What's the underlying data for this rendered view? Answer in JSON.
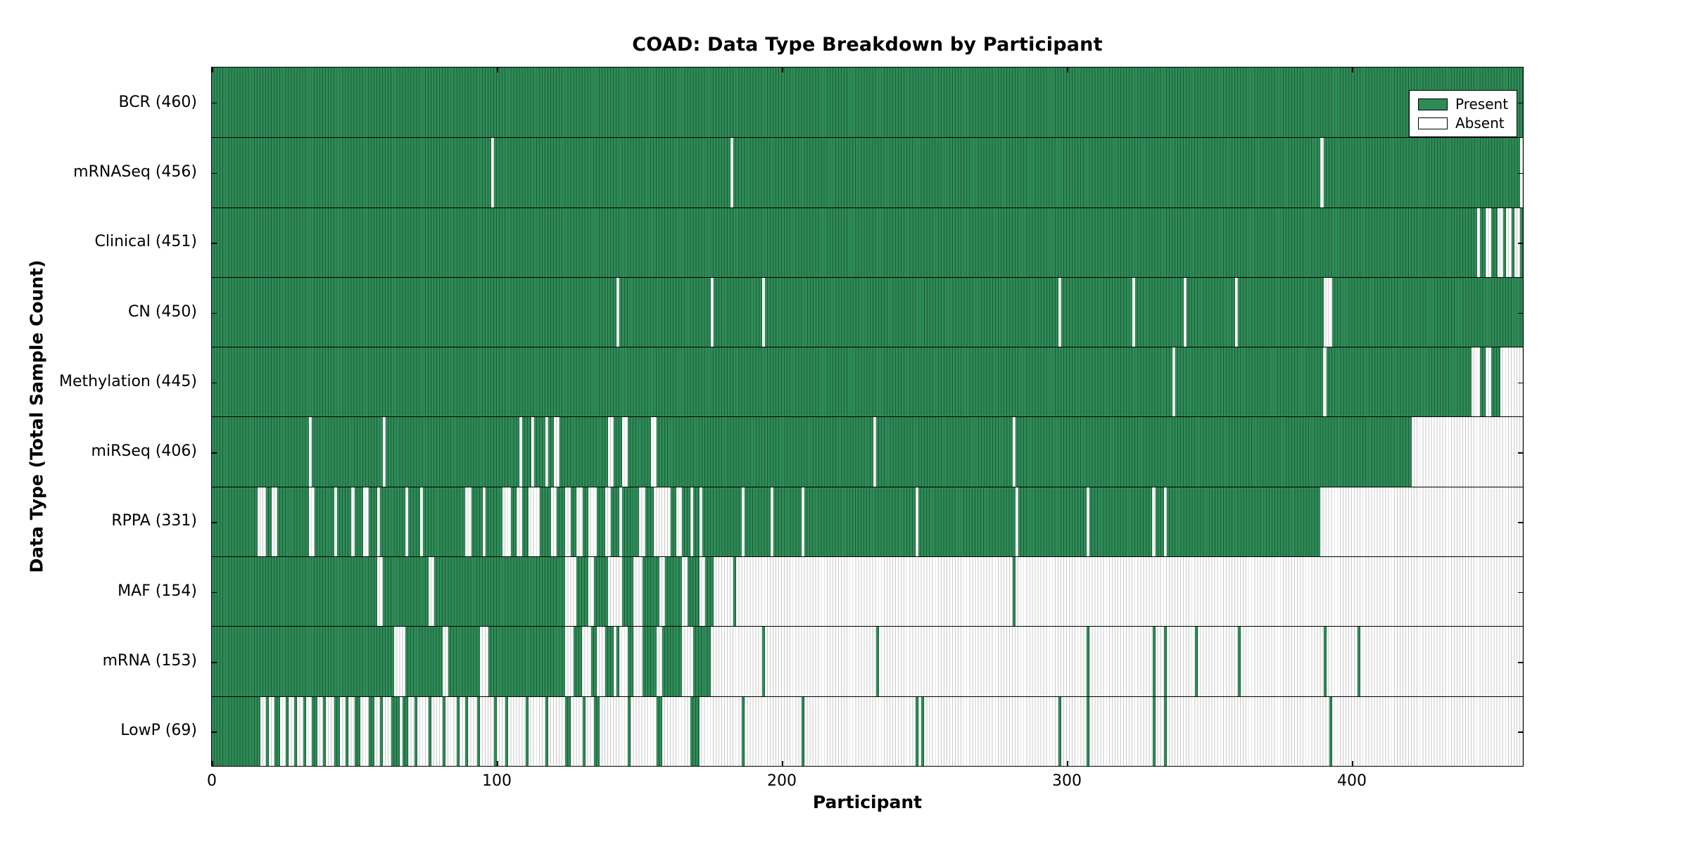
{
  "colors": {
    "present": "#2e8b57",
    "present_line": "#1d5c38",
    "absent": "#ffffff",
    "absent_line": "#c9c9c9",
    "axis": "#000000",
    "background": "#ffffff"
  },
  "chart_data": {
    "type": "heatmap",
    "title": "COAD: Data Type Breakdown by Participant",
    "xlabel": "Participant",
    "ylabel": "Data Type (Total Sample Count)",
    "x_axis": {
      "min": 0,
      "max": 460,
      "ticks": [
        0,
        100,
        200,
        300,
        400
      ]
    },
    "legend": [
      {
        "label": "Present",
        "state": "present"
      },
      {
        "label": "Absent",
        "state": "absent"
      }
    ],
    "rows": [
      {
        "name": "BCR",
        "count": 460,
        "label": "BCR (460)",
        "present_segments": [
          [
            0,
            459
          ]
        ]
      },
      {
        "name": "mRNASeq",
        "count": 456,
        "label": "mRNASeq (456)",
        "present_segments": [
          [
            0,
            97
          ],
          [
            99,
            181
          ],
          [
            183,
            388
          ],
          [
            390,
            458
          ]
        ]
      },
      {
        "name": "Clinical",
        "count": 451,
        "label": "Clinical (451)",
        "present_segments": [
          [
            0,
            443
          ],
          [
            445,
            446
          ],
          [
            449,
            450
          ],
          [
            453,
            453
          ],
          [
            456,
            456
          ],
          [
            459,
            459
          ]
        ]
      },
      {
        "name": "CN",
        "count": 450,
        "label": "CN (450)",
        "present_segments": [
          [
            0,
            141
          ],
          [
            143,
            174
          ],
          [
            176,
            192
          ],
          [
            194,
            296
          ],
          [
            298,
            322
          ],
          [
            324,
            340
          ],
          [
            342,
            358
          ],
          [
            360,
            389
          ],
          [
            393,
            459
          ]
        ]
      },
      {
        "name": "Methylation",
        "count": 445,
        "label": "Methylation (445)",
        "present_segments": [
          [
            0,
            336
          ],
          [
            338,
            389
          ],
          [
            391,
            441
          ],
          [
            445,
            446
          ],
          [
            449,
            451
          ]
        ]
      },
      {
        "name": "miRSeq",
        "count": 406,
        "label": "miRSeq (406)",
        "present_segments": [
          [
            0,
            33
          ],
          [
            35,
            59
          ],
          [
            61,
            107
          ],
          [
            109,
            111
          ],
          [
            113,
            116
          ],
          [
            118,
            119
          ],
          [
            122,
            138
          ],
          [
            141,
            143
          ],
          [
            146,
            153
          ],
          [
            156,
            231
          ],
          [
            233,
            280
          ],
          [
            282,
            420
          ]
        ]
      },
      {
        "name": "RPPA",
        "count": 331,
        "label": "RPPA (331)",
        "present_segments": [
          [
            0,
            15
          ],
          [
            19,
            20
          ],
          [
            23,
            33
          ],
          [
            36,
            42
          ],
          [
            44,
            48
          ],
          [
            50,
            52
          ],
          [
            55,
            57
          ],
          [
            59,
            67
          ],
          [
            69,
            72
          ],
          [
            74,
            88
          ],
          [
            91,
            94
          ],
          [
            96,
            101
          ],
          [
            105,
            106
          ],
          [
            109,
            110
          ],
          [
            115,
            118
          ],
          [
            121,
            123
          ],
          [
            126,
            127
          ],
          [
            130,
            131
          ],
          [
            135,
            137
          ],
          [
            140,
            142
          ],
          [
            144,
            149
          ],
          [
            152,
            154
          ],
          [
            161,
            162
          ],
          [
            165,
            167
          ],
          [
            169,
            170
          ],
          [
            172,
            185
          ],
          [
            187,
            195
          ],
          [
            197,
            206
          ],
          [
            208,
            246
          ],
          [
            248,
            281
          ],
          [
            283,
            306
          ],
          [
            308,
            329
          ],
          [
            331,
            333
          ],
          [
            335,
            388
          ]
        ]
      },
      {
        "name": "MAF",
        "count": 154,
        "label": "MAF (154)",
        "present_segments": [
          [
            0,
            57
          ],
          [
            60,
            75
          ],
          [
            78,
            123
          ],
          [
            128,
            131
          ],
          [
            134,
            138
          ],
          [
            144,
            147
          ],
          [
            151,
            156
          ],
          [
            159,
            164
          ],
          [
            167,
            170
          ],
          [
            173,
            175
          ],
          [
            183,
            183
          ],
          [
            281,
            281
          ]
        ]
      },
      {
        "name": "mRNA",
        "count": 153,
        "label": "mRNA (153)",
        "present_segments": [
          [
            0,
            63
          ],
          [
            68,
            80
          ],
          [
            83,
            93
          ],
          [
            97,
            123
          ],
          [
            127,
            129
          ],
          [
            133,
            134
          ],
          [
            138,
            140
          ],
          [
            142,
            142
          ],
          [
            146,
            147
          ],
          [
            151,
            155
          ],
          [
            158,
            164
          ],
          [
            169,
            174
          ],
          [
            193,
            193
          ],
          [
            233,
            233
          ],
          [
            307,
            307
          ],
          [
            330,
            330
          ],
          [
            334,
            334
          ],
          [
            345,
            345
          ],
          [
            360,
            360
          ],
          [
            390,
            390
          ],
          [
            402,
            402
          ]
        ]
      },
      {
        "name": "LowP",
        "count": 69,
        "label": "LowP (69)",
        "present_segments": [
          [
            0,
            16
          ],
          [
            19,
            19
          ],
          [
            22,
            23
          ],
          [
            26,
            26
          ],
          [
            29,
            29
          ],
          [
            32,
            32
          ],
          [
            35,
            36
          ],
          [
            39,
            39
          ],
          [
            43,
            44
          ],
          [
            47,
            47
          ],
          [
            50,
            51
          ],
          [
            55,
            56
          ],
          [
            59,
            59
          ],
          [
            63,
            65
          ],
          [
            67,
            68
          ],
          [
            71,
            71
          ],
          [
            76,
            76
          ],
          [
            81,
            81
          ],
          [
            86,
            86
          ],
          [
            89,
            89
          ],
          [
            93,
            93
          ],
          [
            99,
            99
          ],
          [
            103,
            103
          ],
          [
            110,
            110
          ],
          [
            117,
            117
          ],
          [
            124,
            125
          ],
          [
            130,
            130
          ],
          [
            134,
            135
          ],
          [
            146,
            146
          ],
          [
            156,
            157
          ],
          [
            168,
            170
          ],
          [
            186,
            186
          ],
          [
            207,
            207
          ],
          [
            247,
            247
          ],
          [
            249,
            249
          ],
          [
            297,
            297
          ],
          [
            307,
            307
          ],
          [
            330,
            330
          ],
          [
            334,
            334
          ],
          [
            392,
            392
          ]
        ]
      }
    ]
  }
}
